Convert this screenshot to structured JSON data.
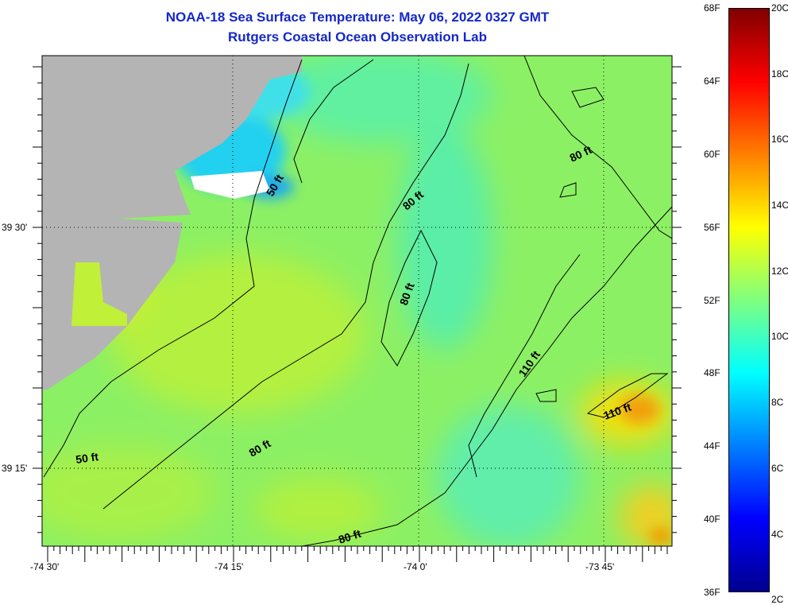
{
  "title": {
    "line1": "NOAA-18 Sea Surface Temperature:  May 06, 2022 0327 GMT",
    "line2": "Rutgers Coastal Ocean Observation Lab"
  },
  "axes": {
    "lat_labels": [
      "39 30'",
      "39 15'"
    ],
    "lon_labels": [
      "-74 30'",
      "-74 15'",
      "-74 0'",
      "-73 45'"
    ]
  },
  "contour_labels": [
    "50 ft",
    "80 ft",
    "80 ft",
    "80 ft",
    "110 ft",
    "110 ft",
    "80 ft",
    "50 ft",
    "80 ft"
  ],
  "colorbar": {
    "fahrenheit_labels": [
      "68F",
      "64F",
      "60F",
      "56F",
      "52F",
      "48F",
      "44F",
      "40F",
      "36F"
    ],
    "celsius_labels": [
      "20C",
      "18C",
      "16C",
      "14C",
      "12C",
      "10C",
      "8C",
      "6C",
      "4C",
      "2C"
    ],
    "range_c": [
      2,
      20
    ],
    "range_f": [
      36,
      68
    ]
  },
  "colors": {
    "title": "#1428c8",
    "land": "#b4b4b4",
    "ocean_base": "#8cf064"
  }
}
